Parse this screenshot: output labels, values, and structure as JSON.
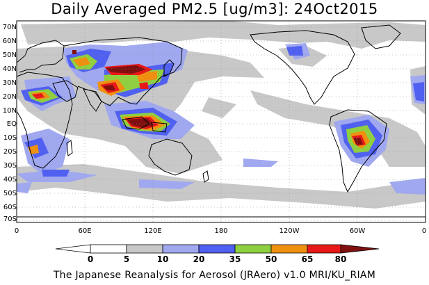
{
  "title": "Daily Averaged PM2.5 [ug/m3]: 24Oct2015",
  "footer": "The Japanese Reanalysis for Aerosol (JRAero) v1.0 MRI/KU_RIAM",
  "lat_labels": [
    "70N",
    "60N",
    "50N",
    "40N",
    "30N",
    "20N",
    "10N",
    "EQ",
    "10S",
    "20S",
    "30S",
    "40S",
    "50S",
    "60S",
    "70S"
  ],
  "lon_labels": [
    "0",
    "60E",
    "120E",
    "180",
    "120W",
    "60W",
    "0"
  ],
  "colorbar": {
    "levels": [
      "0",
      "5",
      "10",
      "20",
      "35",
      "50",
      "65",
      "80"
    ],
    "colors": [
      "#ffffff",
      "#c8c8c8",
      "#a0a8f0",
      "#5060f0",
      "#90d040",
      "#f09010",
      "#e81818",
      "#801010"
    ]
  },
  "colors": {
    "ocean": "#ffffff",
    "coast": "#000000",
    "grid": "#909090"
  }
}
